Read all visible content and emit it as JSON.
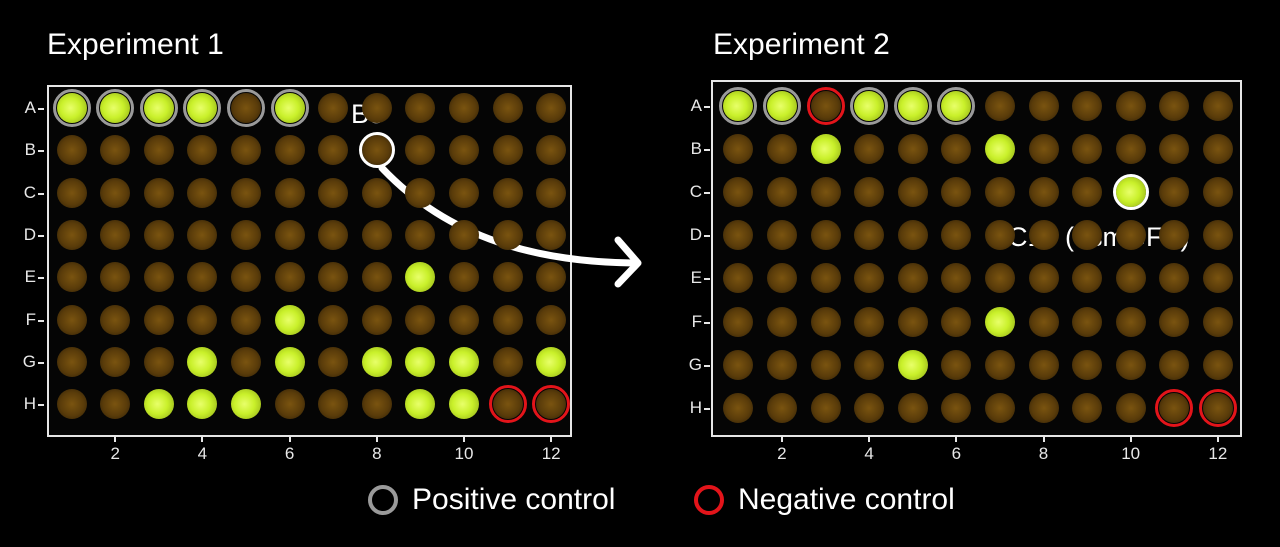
{
  "figure": {
    "colors": {
      "background": "#000000",
      "positive_control": "#9a9a9a",
      "negative_control": "#e3141a",
      "highlight": "#ffffff",
      "bright_well": "#c9f02a",
      "dim_well": "#5a3c0a"
    },
    "rows": [
      "A",
      "B",
      "C",
      "D",
      "E",
      "F",
      "G",
      "H"
    ],
    "x_ticks": [
      "2",
      "4",
      "6",
      "8",
      "10",
      "12"
    ],
    "legend": {
      "positive_label": "Positive control",
      "negative_label": "Negative control"
    },
    "panels": [
      {
        "title": "Experiment 1",
        "callout": "B8",
        "positive_controls": [
          "A1",
          "A2",
          "A3",
          "A4",
          "A5",
          "A6"
        ],
        "negative_controls": [
          "H11",
          "H12"
        ],
        "highlighted_well": "B8",
        "bright_wells": [
          "A1",
          "A2",
          "A3",
          "A4",
          "A6",
          "E9",
          "F6",
          "G4",
          "G6",
          "G8",
          "G9",
          "G10",
          "G12",
          "H3",
          "H4",
          "H5",
          "H9",
          "H10"
        ]
      },
      {
        "title": "Experiment 2",
        "callout": "C10 (esmGFP)",
        "positive_controls": [
          "A1",
          "A2",
          "A4",
          "A5",
          "A6"
        ],
        "negative_controls": [
          "A3",
          "H11",
          "H12"
        ],
        "highlighted_well": "C10",
        "bright_wells": [
          "A1",
          "A2",
          "A4",
          "A5",
          "A6",
          "B3",
          "B7",
          "C10",
          "F7",
          "G5"
        ]
      }
    ]
  }
}
